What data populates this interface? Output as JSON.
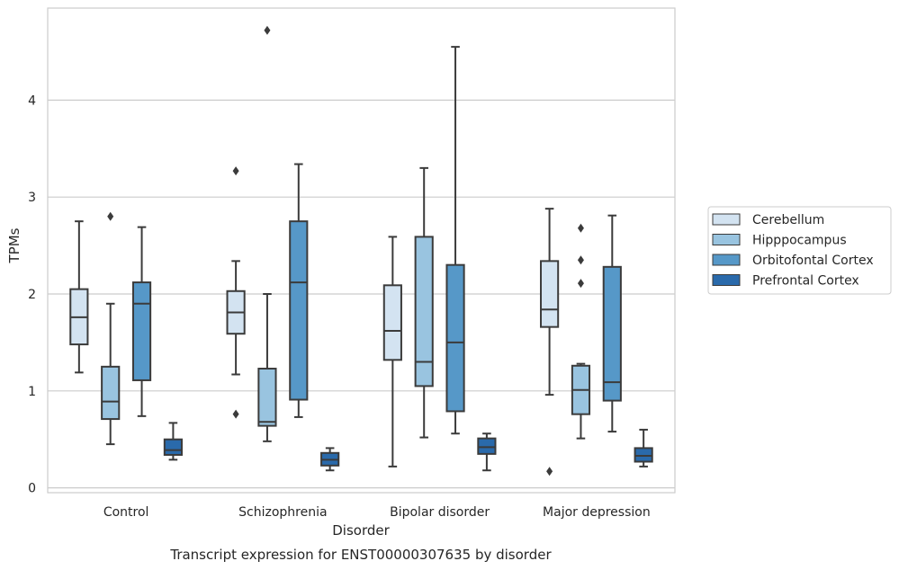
{
  "chart_data": {
    "type": "box",
    "title": "Transcript expression for ENST00000307635 by disorder",
    "xlabel": "Disorder",
    "ylabel": "TPMs",
    "ylim": [
      -0.05,
      4.95
    ],
    "yticks": [
      0,
      1,
      2,
      3,
      4
    ],
    "grid": "horizontal",
    "legend_position": "right",
    "categories": [
      "Control",
      "Schizophrenia",
      "Bipolar disorder",
      "Major depression"
    ],
    "series": [
      {
        "name": "Cerebellum",
        "color": "#d3e3f1",
        "boxes": [
          {
            "whislo": 1.19,
            "q1": 1.48,
            "med": 1.76,
            "q3": 2.05,
            "whishi": 2.75,
            "fliers": []
          },
          {
            "whislo": 1.17,
            "q1": 1.59,
            "med": 1.81,
            "q3": 2.03,
            "whishi": 2.34,
            "fliers": [
              3.27,
              0.76
            ]
          },
          {
            "whislo": 0.22,
            "q1": 1.32,
            "med": 1.62,
            "q3": 2.09,
            "whishi": 2.59,
            "fliers": []
          },
          {
            "whislo": 0.96,
            "q1": 1.66,
            "med": 1.84,
            "q3": 2.34,
            "whishi": 2.88,
            "fliers": [
              0.17
            ]
          }
        ]
      },
      {
        "name": "Hipppocampus",
        "color": "#99c4e0",
        "boxes": [
          {
            "whislo": 0.45,
            "q1": 0.71,
            "med": 0.89,
            "q3": 1.25,
            "whishi": 1.9,
            "fliers": [
              2.8
            ]
          },
          {
            "whislo": 0.48,
            "q1": 0.64,
            "med": 0.68,
            "q3": 1.23,
            "whishi": 2.0,
            "fliers": [
              4.72
            ]
          },
          {
            "whislo": 0.52,
            "q1": 1.05,
            "med": 1.3,
            "q3": 2.59,
            "whishi": 3.3,
            "fliers": []
          },
          {
            "whislo": 0.51,
            "q1": 0.76,
            "med": 1.01,
            "q3": 1.26,
            "whishi": 1.28,
            "fliers": [
              2.68,
              2.35,
              2.11
            ]
          }
        ]
      },
      {
        "name": "Orbitofontal Cortex",
        "color": "#5698c8",
        "boxes": [
          {
            "whislo": 0.74,
            "q1": 1.11,
            "med": 1.9,
            "q3": 2.12,
            "whishi": 2.69,
            "fliers": []
          },
          {
            "whislo": 0.73,
            "q1": 0.91,
            "med": 2.12,
            "q3": 2.75,
            "whishi": 3.34,
            "fliers": []
          },
          {
            "whislo": 0.56,
            "q1": 0.79,
            "med": 1.5,
            "q3": 2.3,
            "whishi": 4.55,
            "fliers": []
          },
          {
            "whislo": 0.58,
            "q1": 0.9,
            "med": 1.09,
            "q3": 2.28,
            "whishi": 2.81,
            "fliers": []
          }
        ]
      },
      {
        "name": "Prefrontal Cortex",
        "color": "#2a6aab",
        "boxes": [
          {
            "whislo": 0.29,
            "q1": 0.34,
            "med": 0.39,
            "q3": 0.5,
            "whishi": 0.67,
            "fliers": []
          },
          {
            "whislo": 0.18,
            "q1": 0.23,
            "med": 0.29,
            "q3": 0.36,
            "whishi": 0.41,
            "fliers": []
          },
          {
            "whislo": 0.18,
            "q1": 0.35,
            "med": 0.42,
            "q3": 0.51,
            "whishi": 0.56,
            "fliers": []
          },
          {
            "whislo": 0.22,
            "q1": 0.27,
            "med": 0.33,
            "q3": 0.41,
            "whishi": 0.6,
            "fliers": []
          }
        ]
      }
    ]
  }
}
